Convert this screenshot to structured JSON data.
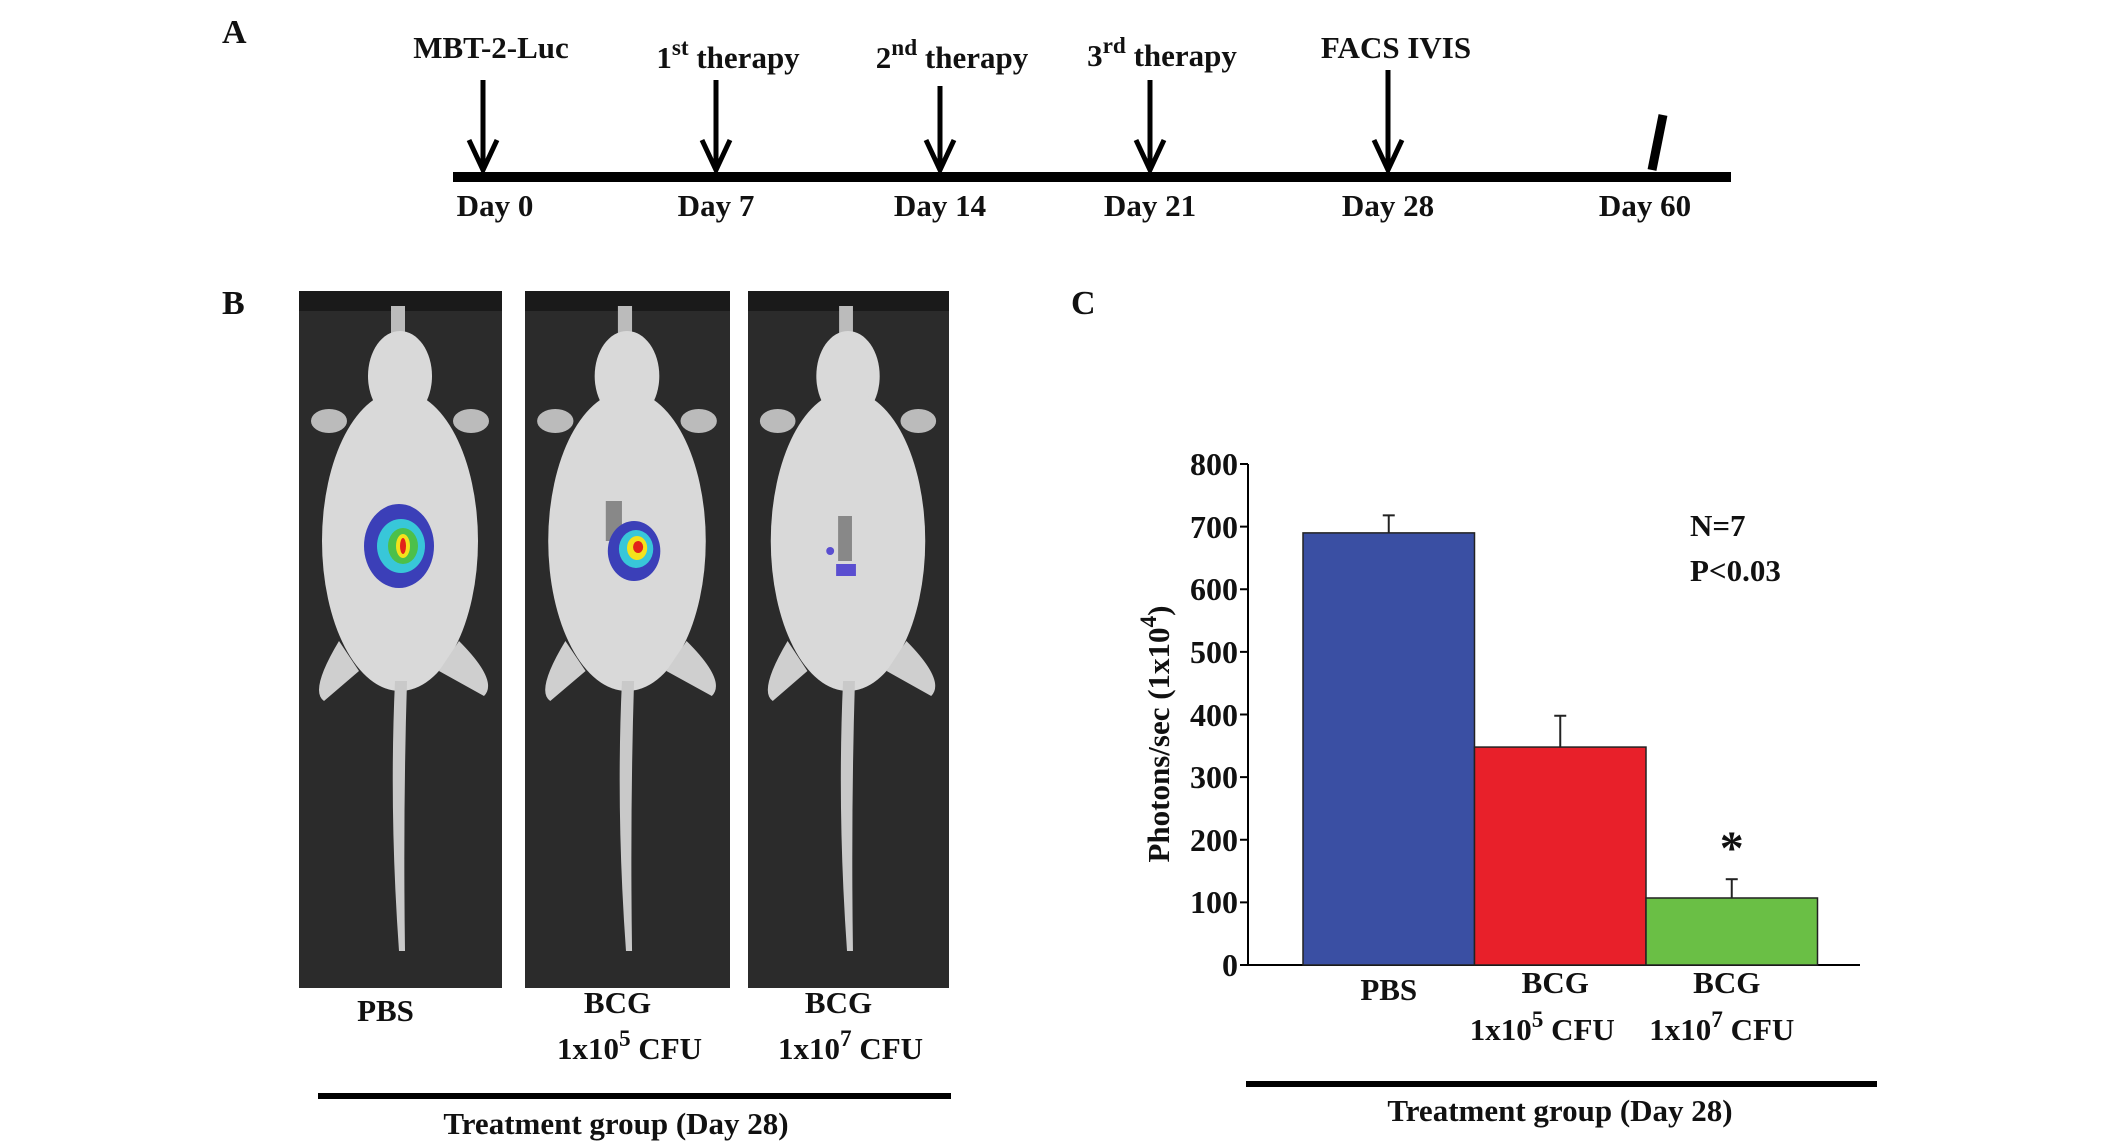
{
  "panel_labels": {
    "a": "A",
    "b": "B",
    "c": "C"
  },
  "timeline": {
    "events": [
      {
        "label": "MBT-2-Luc",
        "day": "Day 0"
      },
      {
        "num": "1",
        "sup": "st",
        "label": "therapy",
        "day": "Day 7"
      },
      {
        "num": "2",
        "sup": "nd",
        "label": "therapy",
        "day": "Day 14"
      },
      {
        "num": "3",
        "sup": "rd",
        "label": "therapy",
        "day": "Day 21"
      },
      {
        "label": "FACS IVIS",
        "day": "Day 28"
      }
    ],
    "end_day": "Day 60"
  },
  "imaging": {
    "groups": [
      {
        "name": "PBS",
        "dose": "",
        "dose_exp": "",
        "unit": "",
        "signal": "high"
      },
      {
        "name": "BCG",
        "dose": "1x10",
        "dose_exp": "5",
        "unit": "CFU",
        "signal": "medium"
      },
      {
        "name": "BCG",
        "dose": "1x10",
        "dose_exp": "7",
        "unit": "CFU",
        "signal": "low"
      }
    ],
    "xlabel": "Treatment group (Day 28)"
  },
  "chart_data": {
    "type": "bar",
    "categories": [
      {
        "name": "PBS",
        "dose": "",
        "dose_exp": "",
        "unit": ""
      },
      {
        "name": "BCG",
        "dose": "1x10",
        "dose_exp": "5",
        "unit": "CFU"
      },
      {
        "name": "BCG",
        "dose": "1x10",
        "dose_exp": "7",
        "unit": "CFU"
      }
    ],
    "values": [
      690,
      348,
      107
    ],
    "errors": [
      28,
      50,
      30
    ],
    "colors": [
      "#3a4fa3",
      "#e8202a",
      "#6abf45"
    ],
    "significance": [
      "",
      "",
      "*"
    ],
    "ylabel": "Photons/sec (1x10",
    "ylabel_exp": "4",
    "ylabel_end": ")",
    "xlabel": "Treatment group (Day 28)",
    "ylim": [
      0,
      800
    ],
    "yticks": [
      "0",
      "100",
      "200",
      "300",
      "400",
      "500",
      "600",
      "700",
      "800"
    ],
    "annotations": [
      "N=7",
      "P<0.03"
    ],
    "grid": false
  }
}
